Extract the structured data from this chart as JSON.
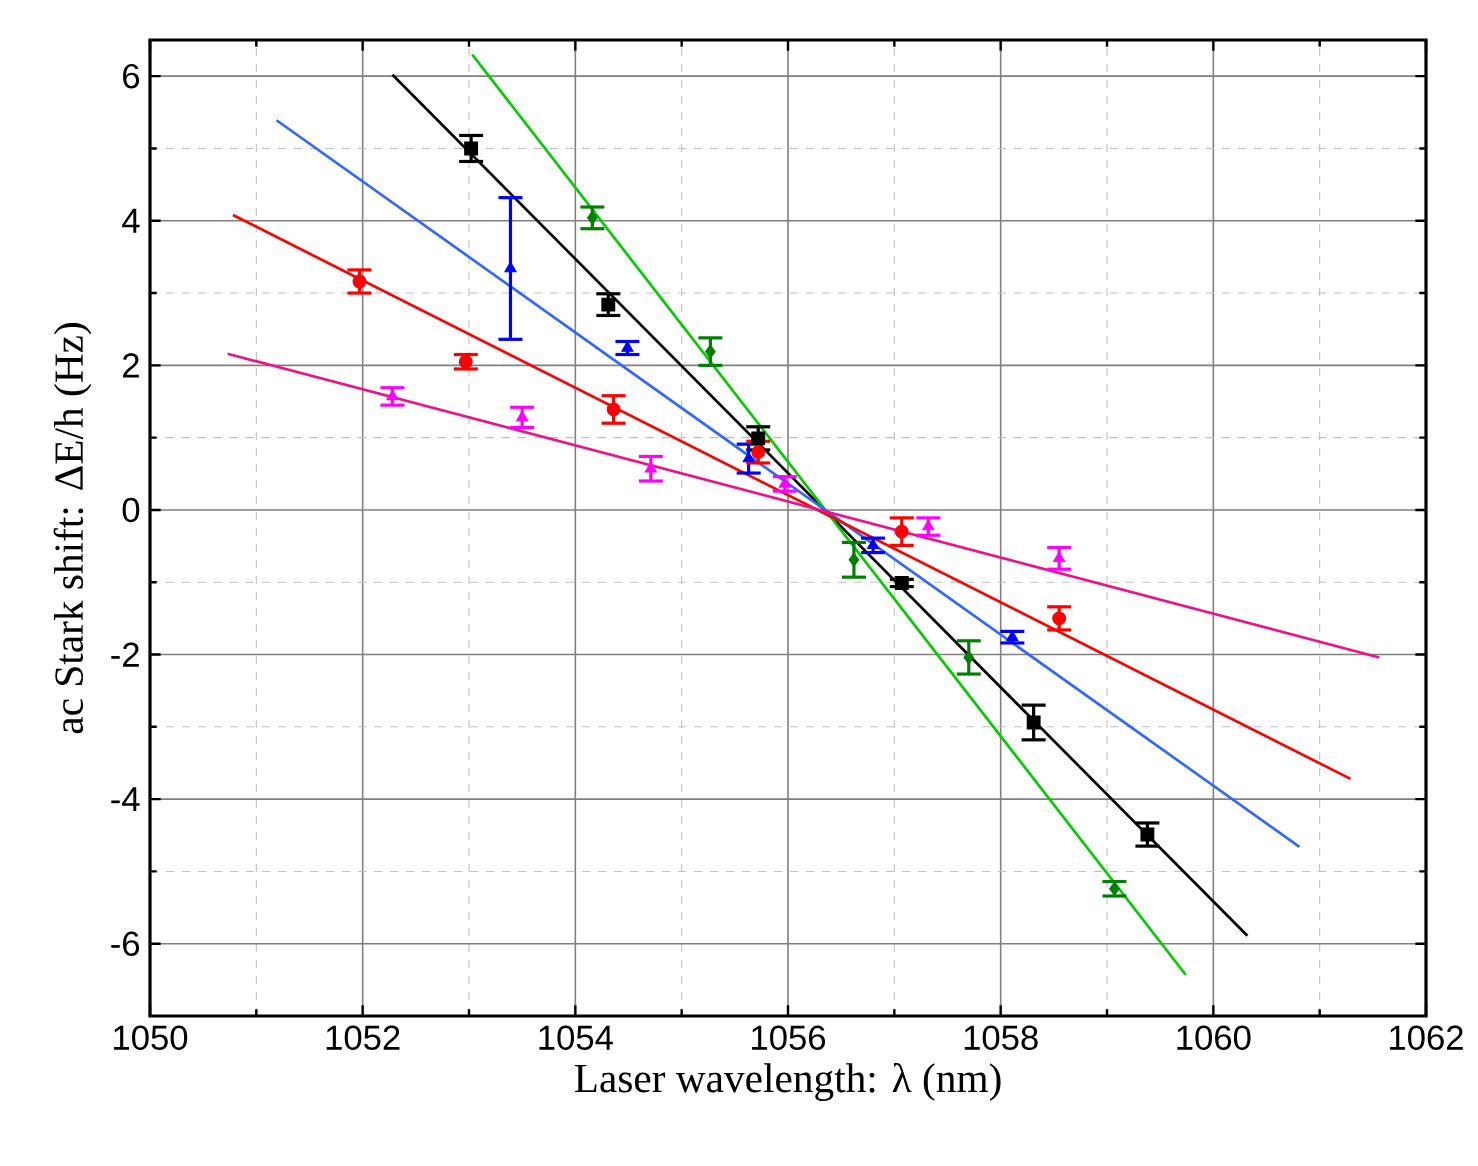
{
  "chart_data": {
    "type": "scatter",
    "xlabel": "Laser wavelength: λ (nm)",
    "ylabel": "ac Stark shift: ΔE/h (Hz)",
    "xlim": [
      1050,
      1062
    ],
    "ylim": [
      -7,
      6.5
    ],
    "xticks": [
      1050,
      1052,
      1054,
      1056,
      1058,
      1060,
      1062
    ],
    "yticks": [
      -6,
      -4,
      -2,
      0,
      2,
      4,
      6
    ],
    "grid": true,
    "series": [
      {
        "type": "line",
        "color": "#000000",
        "x": [
          1052.28,
          1060.32
        ],
        "values": [
          6.02,
          -5.89
        ]
      },
      {
        "type": "line",
        "color": "#00cc00",
        "x": [
          1053.03,
          1059.74
        ],
        "values": [
          6.3,
          -6.43
        ]
      },
      {
        "type": "line",
        "color": "#3366ff",
        "x": [
          1051.19,
          1060.81
        ],
        "values": [
          5.39,
          -4.66
        ]
      },
      {
        "type": "line",
        "color": "#ff0000",
        "x": [
          1050.78,
          1061.29
        ],
        "values": [
          4.08,
          -3.72
        ]
      },
      {
        "type": "line",
        "color": "#ee1188",
        "x": [
          1050.73,
          1061.56
        ],
        "values": [
          2.16,
          -2.04
        ]
      },
      {
        "marker": "square",
        "color": "#000000",
        "x": [
          1053.02,
          1054.31,
          1055.72,
          1057.07,
          1058.31,
          1059.38
        ],
        "values": [
          5.0,
          2.84,
          0.99,
          -1.01,
          -2.94,
          -4.49
        ],
        "errors": [
          0.18,
          0.15,
          0.16,
          0.05,
          0.24,
          0.16
        ]
      },
      {
        "marker": "diamond",
        "color": "#008000",
        "x": [
          1054.16,
          1055.27,
          1056.62,
          1057.7,
          1059.07
        ],
        "values": [
          4.04,
          2.19,
          -0.69,
          -2.04,
          -5.24
        ],
        "errors": [
          0.15,
          0.19,
          0.24,
          0.23,
          0.1
        ]
      },
      {
        "marker": "triangle",
        "color": "#0000ff",
        "x": [
          1053.39,
          1054.49,
          1055.63,
          1056.8,
          1058.11
        ],
        "values": [
          3.34,
          2.24,
          0.71,
          -0.49,
          -1.76
        ],
        "errors": [
          0.98,
          0.09,
          0.2,
          0.1,
          0.08
        ]
      },
      {
        "marker": "circle",
        "color": "#ff0000",
        "x": [
          1051.97,
          1052.97,
          1054.36,
          1055.72,
          1057.07,
          1058.55
        ],
        "values": [
          3.16,
          2.05,
          1.39,
          0.8,
          -0.3,
          -1.5
        ],
        "errors": [
          0.16,
          0.1,
          0.19,
          0.15,
          0.19,
          0.16
        ]
      },
      {
        "marker": "triangle",
        "color": "#ff00ff",
        "x": [
          1052.28,
          1053.5,
          1054.71,
          1055.97,
          1057.32,
          1058.55
        ],
        "values": [
          1.57,
          1.28,
          0.57,
          0.36,
          -0.23,
          -0.67
        ],
        "errors": [
          0.12,
          0.14,
          0.17,
          0.1,
          0.12,
          0.15
        ]
      }
    ]
  }
}
